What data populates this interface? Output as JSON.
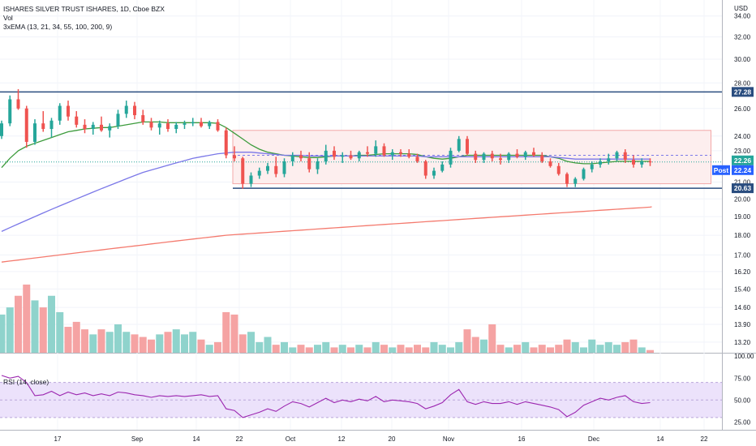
{
  "legend": {
    "title": "ISHARES SILVER TRUST ISHARES, 1D, Cboe BZX",
    "vol": "Vol",
    "ema": "3xEMA (13, 21, 34, 55, 100, 200, 9)",
    "rsi": "RSI (14, close)"
  },
  "currency": "USD",
  "colors": {
    "up": "#26a69a",
    "down": "#ef5350",
    "vol_up": "#8fd3cc",
    "vol_down": "#f5a3a3",
    "ema_short": "#3c9b3c",
    "ema_mid": "#7b78e8",
    "ema_long": "#f47a6e",
    "hline": "#2a4d7f",
    "rsi_line": "#9c27b0",
    "rsi_band": "#ece2fb",
    "box_fill": "#fdeeee",
    "box_border": "#f3a8a8",
    "post_badge": "#2962ff"
  },
  "price_labels": {
    "top_line": "27.28",
    "last": "22.26",
    "post_tag": "Post",
    "post_value": "22.24",
    "bottom_line": "20.63"
  },
  "chart_data": {
    "type": "candlestick",
    "x_labels": [
      "17",
      "Sep",
      "14",
      "22",
      "Oct",
      "12",
      "20",
      "Nov",
      "16",
      "Dec",
      "14",
      "22"
    ],
    "price_axis_ticks": [
      "34.00",
      "32.00",
      "30.00",
      "28.00",
      "26.00",
      "24.00",
      "23.00",
      "22.00",
      "21.00",
      "20.00",
      "19.00",
      "18.00",
      "17.00",
      "16.20",
      "15.40",
      "14.60",
      "13.90",
      "13.20"
    ],
    "price_scale": "log",
    "horizontal_lines": [
      27.28,
      20.63
    ],
    "range_box": {
      "top": 24.4,
      "bottom": 20.9
    },
    "ohlc": [
      [
        24.0,
        25.1,
        23.8,
        24.9
      ],
      [
        24.9,
        27.0,
        24.7,
        26.7
      ],
      [
        26.7,
        27.5,
        25.9,
        26.0
      ],
      [
        26.0,
        26.2,
        23.2,
        23.6
      ],
      [
        23.6,
        25.2,
        23.4,
        24.9
      ],
      [
        24.9,
        25.8,
        24.3,
        24.5
      ],
      [
        24.5,
        25.3,
        23.9,
        25.1
      ],
      [
        25.1,
        26.4,
        24.8,
        26.2
      ],
      [
        26.2,
        26.6,
        25.1,
        25.4
      ],
      [
        25.4,
        25.8,
        24.6,
        24.8
      ],
      [
        24.8,
        25.2,
        24.2,
        24.5
      ],
      [
        24.5,
        25.0,
        24.1,
        24.8
      ],
      [
        24.8,
        25.4,
        24.3,
        24.4
      ],
      [
        24.4,
        24.9,
        23.9,
        24.7
      ],
      [
        24.7,
        25.9,
        24.5,
        25.6
      ],
      [
        25.6,
        26.6,
        25.3,
        26.2
      ],
      [
        26.2,
        26.5,
        25.2,
        25.5
      ],
      [
        25.5,
        25.9,
        24.8,
        25.0
      ],
      [
        25.0,
        25.3,
        24.4,
        24.6
      ],
      [
        24.6,
        25.1,
        24.1,
        24.9
      ],
      [
        24.9,
        25.2,
        24.3,
        24.5
      ],
      [
        24.5,
        25.0,
        24.2,
        24.8
      ],
      [
        24.8,
        25.1,
        24.5,
        24.9
      ],
      [
        24.9,
        25.3,
        24.7,
        25.0
      ],
      [
        25.0,
        25.3,
        24.6,
        24.7
      ],
      [
        24.7,
        25.1,
        24.5,
        25.0
      ],
      [
        25.0,
        25.2,
        24.3,
        24.4
      ],
      [
        24.4,
        24.6,
        22.5,
        22.7
      ],
      [
        22.7,
        23.3,
        22.3,
        22.5
      ],
      [
        22.5,
        22.6,
        20.6,
        20.9
      ],
      [
        20.9,
        21.6,
        20.7,
        21.4
      ],
      [
        21.4,
        21.9,
        21.2,
        21.7
      ],
      [
        21.7,
        22.2,
        21.5,
        22.0
      ],
      [
        22.0,
        22.6,
        21.3,
        21.5
      ],
      [
        21.5,
        22.5,
        21.3,
        22.3
      ],
      [
        22.3,
        22.9,
        22.0,
        22.7
      ],
      [
        22.7,
        23.0,
        22.3,
        22.5
      ],
      [
        22.5,
        22.9,
        21.6,
        21.8
      ],
      [
        21.8,
        22.5,
        21.5,
        22.3
      ],
      [
        22.3,
        23.4,
        22.1,
        23.0
      ],
      [
        23.0,
        23.3,
        22.4,
        22.6
      ],
      [
        22.6,
        22.9,
        22.2,
        22.7
      ],
      [
        22.7,
        23.0,
        22.4,
        22.5
      ],
      [
        22.5,
        23.0,
        22.3,
        22.9
      ],
      [
        22.9,
        23.3,
        22.6,
        22.8
      ],
      [
        22.8,
        23.7,
        22.6,
        23.3
      ],
      [
        23.3,
        23.5,
        22.6,
        22.7
      ],
      [
        22.7,
        23.1,
        22.4,
        22.9
      ],
      [
        22.9,
        23.1,
        22.6,
        22.8
      ],
      [
        22.8,
        23.1,
        22.5,
        22.6
      ],
      [
        22.6,
        22.8,
        22.2,
        22.3
      ],
      [
        22.3,
        22.4,
        21.2,
        21.4
      ],
      [
        21.4,
        21.9,
        21.2,
        21.7
      ],
      [
        21.7,
        22.3,
        21.6,
        22.1
      ],
      [
        22.1,
        23.2,
        21.9,
        23.0
      ],
      [
        23.0,
        24.0,
        22.9,
        23.8
      ],
      [
        23.8,
        24.0,
        22.7,
        22.8
      ],
      [
        22.8,
        23.0,
        22.2,
        22.4
      ],
      [
        22.4,
        22.9,
        22.2,
        22.8
      ],
      [
        22.8,
        23.0,
        22.3,
        22.5
      ],
      [
        22.5,
        22.8,
        22.1,
        22.4
      ],
      [
        22.4,
        22.9,
        22.2,
        22.8
      ],
      [
        22.8,
        23.1,
        22.5,
        22.6
      ],
      [
        22.6,
        23.0,
        22.4,
        22.9
      ],
      [
        22.9,
        23.2,
        22.6,
        22.7
      ],
      [
        22.7,
        22.9,
        22.2,
        22.3
      ],
      [
        22.3,
        22.5,
        21.9,
        22.0
      ],
      [
        22.0,
        22.2,
        21.4,
        21.5
      ],
      [
        21.5,
        21.6,
        20.7,
        20.9
      ],
      [
        20.9,
        21.3,
        20.7,
        21.2
      ],
      [
        21.2,
        21.9,
        21.1,
        21.8
      ],
      [
        21.8,
        22.3,
        21.6,
        22.1
      ],
      [
        22.1,
        22.5,
        21.9,
        22.3
      ],
      [
        22.3,
        22.8,
        22.1,
        22.5
      ],
      [
        22.5,
        23.0,
        22.3,
        22.9
      ],
      [
        22.9,
        23.1,
        22.2,
        22.4
      ],
      [
        22.4,
        22.7,
        21.9,
        22.1
      ],
      [
        22.1,
        22.5,
        21.9,
        22.3
      ],
      [
        22.3,
        22.5,
        22.0,
        22.26
      ]
    ],
    "volume": [
      14.3,
      14.6,
      15.1,
      15.6,
      14.9,
      14.6,
      15.1,
      14.4,
      13.8,
      14.0,
      13.7,
      13.5,
      13.7,
      13.6,
      13.9,
      13.6,
      13.5,
      13.4,
      13.3,
      13.5,
      13.6,
      13.7,
      13.5,
      13.6,
      13.3,
      13.1,
      13.2,
      14.4,
      14.3,
      13.5,
      13.6,
      13.2,
      13.4,
      13.1,
      13.2,
      13.0,
      13.1,
      13.0,
      13.1,
      13.2,
      13.0,
      13.1,
      13.0,
      13.1,
      13.0,
      13.2,
      13.1,
      13.0,
      13.1,
      13.0,
      13.1,
      13.0,
      13.2,
      13.1,
      13.0,
      13.2,
      13.7,
      13.4,
      13.3,
      13.9,
      13.1,
      13.0,
      13.1,
      13.2,
      13.0,
      13.1,
      13.0,
      13.1,
      13.3,
      13.2,
      13.0,
      13.3,
      13.1,
      13.2,
      13.1,
      13.2,
      13.3,
      13.0,
      12.9
    ],
    "ema_series": [
      {
        "values": [
          21.9,
          22.5,
          23.0,
          23.3,
          23.5,
          23.7,
          23.9,
          24.1,
          24.3,
          24.4,
          24.5,
          24.55,
          24.6,
          24.6,
          24.7,
          24.8,
          24.9,
          25.0,
          25.0,
          25.0,
          24.95,
          24.95,
          24.95,
          24.95,
          24.95,
          24.95,
          24.9,
          24.6,
          24.2,
          23.8,
          23.4,
          23.1,
          22.9,
          22.8,
          22.7,
          22.65,
          22.6,
          22.55,
          22.55,
          22.6,
          22.65,
          22.65,
          22.65,
          22.7,
          22.7,
          22.75,
          22.8,
          22.8,
          22.8,
          22.8,
          22.75,
          22.6,
          22.5,
          22.45,
          22.5,
          22.6,
          22.7,
          22.7,
          22.7,
          22.7,
          22.7,
          22.7,
          22.7,
          22.7,
          22.7,
          22.7,
          22.6,
          22.5,
          22.3,
          22.2,
          22.15,
          22.15,
          22.2,
          22.25,
          22.3,
          22.3,
          22.3,
          22.3,
          22.3
        ]
      },
      {
        "values": [
          18.2,
          18.4,
          18.6,
          18.8,
          19.0,
          19.2,
          19.4,
          19.6,
          19.8,
          20.0,
          20.2,
          20.4,
          20.6,
          20.8,
          21.0,
          21.2,
          21.4,
          21.6,
          21.75,
          21.9,
          22.05,
          22.2,
          22.35,
          22.5,
          22.6,
          22.7,
          22.8,
          22.85,
          22.9,
          22.9,
          22.9,
          22.85,
          22.8,
          22.75,
          22.7,
          22.7,
          22.7,
          22.65,
          22.65,
          22.65,
          22.65,
          22.65,
          22.65,
          22.65,
          22.65,
          22.65,
          22.65,
          22.65,
          22.65,
          22.65,
          22.65,
          22.6,
          22.6,
          22.6,
          22.6,
          22.6,
          22.6,
          22.6,
          22.6,
          22.6,
          22.6,
          22.6,
          22.6,
          22.6,
          22.6,
          22.6,
          22.6,
          22.55,
          22.5,
          22.45,
          22.45,
          22.45,
          22.45,
          22.45,
          22.45,
          22.45,
          22.45,
          22.45,
          22.45
        ]
      },
      {
        "values": [
          16.65,
          16.7,
          16.75,
          16.8,
          16.85,
          16.9,
          16.95,
          17.0,
          17.05,
          17.1,
          17.15,
          17.2,
          17.25,
          17.3,
          17.35,
          17.4,
          17.45,
          17.5,
          17.55,
          17.6,
          17.65,
          17.7,
          17.75,
          17.8,
          17.85,
          17.9,
          17.95,
          18.0,
          18.03,
          18.06,
          18.09,
          18.12,
          18.15,
          18.18,
          18.21,
          18.24,
          18.27,
          18.3,
          18.33,
          18.36,
          18.39,
          18.42,
          18.45,
          18.48,
          18.51,
          18.54,
          18.57,
          18.6,
          18.63,
          18.66,
          18.69,
          18.72,
          18.75,
          18.78,
          18.81,
          18.84,
          18.87,
          18.9,
          18.93,
          18.96,
          18.99,
          19.02,
          19.05,
          19.08,
          19.11,
          19.14,
          19.17,
          19.2,
          19.23,
          19.26,
          19.29,
          19.32,
          19.35,
          19.38,
          19.41,
          19.44,
          19.47,
          19.5,
          19.53
        ]
      }
    ],
    "rsi": {
      "range": [
        0,
        100
      ],
      "bands": [
        30,
        70
      ],
      "ticks": [
        "100.00",
        "75.00",
        "50.00",
        "25.00"
      ],
      "values": [
        78,
        75,
        77,
        70,
        55,
        56,
        60,
        55,
        59,
        56,
        58,
        55,
        57,
        55,
        59,
        58,
        56,
        55,
        53,
        55,
        54,
        55,
        54,
        55,
        56,
        54,
        55,
        40,
        38,
        30,
        33,
        36,
        40,
        37,
        43,
        48,
        46,
        42,
        47,
        52,
        47,
        50,
        48,
        51,
        49,
        54,
        48,
        50,
        49,
        48,
        46,
        40,
        43,
        47,
        56,
        62,
        48,
        45,
        48,
        46,
        46,
        48,
        45,
        48,
        46,
        44,
        42,
        39,
        31,
        36,
        44,
        48,
        52,
        50,
        53,
        55,
        48,
        46,
        47
      ]
    }
  }
}
